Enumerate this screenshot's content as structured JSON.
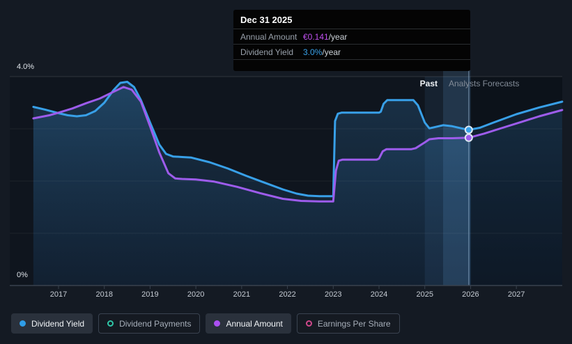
{
  "tooltip": {
    "date": "Dec 31 2025",
    "rows": [
      {
        "label": "Annual Amount",
        "value": "€0.141",
        "suffix": "/year",
        "color": "#c050f0"
      },
      {
        "label": "Dividend Yield",
        "value": "3.0%",
        "suffix": "/year",
        "color": "#38a0e8"
      }
    ]
  },
  "y_axis": {
    "top_label": "4.0%",
    "bottom_label": "0%"
  },
  "x_axis": {
    "years": [
      "2017",
      "2018",
      "2019",
      "2020",
      "2021",
      "2022",
      "2023",
      "2024",
      "2025",
      "2026",
      "2027"
    ]
  },
  "zones": {
    "past_label": "Past",
    "forecast_label": "Analysts Forecasts"
  },
  "legend": [
    {
      "label": "Dividend Yield",
      "marker": "filled-circle",
      "color": "#2f9de8",
      "active": true
    },
    {
      "label": "Dividend Payments",
      "marker": "ring-circle",
      "color": "#2fc7a8",
      "active": false
    },
    {
      "label": "Annual Amount",
      "marker": "filled-circle",
      "color": "#ab4ff2",
      "active": true
    },
    {
      "label": "Earnings Per Share",
      "marker": "ring-circle",
      "color": "#d0488c",
      "active": false
    }
  ],
  "colors": {
    "background": "#141a23",
    "plot_background": "#0f151e",
    "yield_line": "#38a0e8",
    "amount_line": "#9d5ceb",
    "axis_line": "#39424e"
  },
  "chart_data": {
    "type": "line",
    "x_range": [
      2016.45,
      2028
    ],
    "y_axis_percent": {
      "min": 0,
      "max": 4,
      "gridlines": [
        1,
        2,
        3,
        4
      ],
      "top_tick_label": "4.0%",
      "bottom_tick_label": "0%"
    },
    "x_ticks": [
      2017,
      2018,
      2019,
      2020,
      2021,
      2022,
      2023,
      2024,
      2025,
      2026,
      2027
    ],
    "highlight_band_years": [
      2025,
      2026
    ],
    "past_forecast_divider_year": 2025.4,
    "legend_position": "bottom",
    "grid": true,
    "hover": {
      "year": 2025.96,
      "date": "Dec 31 2025",
      "annual_amount_eur_per_year": 0.141,
      "dividend_yield_percent_per_year": 3.0
    },
    "series": [
      {
        "name": "Dividend Yield",
        "unit": "percent",
        "color": "#38a0e8",
        "marker_at_hover": {
          "year": 2025.96,
          "value": 2.98
        },
        "points": [
          [
            2016.45,
            3.42
          ],
          [
            2016.7,
            3.37
          ],
          [
            2017.0,
            3.3
          ],
          [
            2017.2,
            3.26
          ],
          [
            2017.4,
            3.24
          ],
          [
            2017.6,
            3.26
          ],
          [
            2017.8,
            3.34
          ],
          [
            2018.0,
            3.5
          ],
          [
            2018.2,
            3.74
          ],
          [
            2018.35,
            3.88
          ],
          [
            2018.5,
            3.9
          ],
          [
            2018.65,
            3.8
          ],
          [
            2018.8,
            3.55
          ],
          [
            2019.0,
            3.12
          ],
          [
            2019.2,
            2.7
          ],
          [
            2019.35,
            2.52
          ],
          [
            2019.5,
            2.47
          ],
          [
            2019.7,
            2.46
          ],
          [
            2019.9,
            2.45
          ],
          [
            2020.3,
            2.36
          ],
          [
            2020.7,
            2.24
          ],
          [
            2021.1,
            2.1
          ],
          [
            2021.5,
            1.97
          ],
          [
            2021.9,
            1.84
          ],
          [
            2022.2,
            1.76
          ],
          [
            2022.45,
            1.72
          ],
          [
            2022.7,
            1.71
          ],
          [
            2023.0,
            1.71
          ],
          [
            2023.04,
            3.15
          ],
          [
            2023.1,
            3.29
          ],
          [
            2023.18,
            3.31
          ],
          [
            2024.0,
            3.31
          ],
          [
            2024.04,
            3.33
          ],
          [
            2024.1,
            3.48
          ],
          [
            2024.18,
            3.55
          ],
          [
            2024.3,
            3.55
          ],
          [
            2024.75,
            3.55
          ],
          [
            2024.85,
            3.45
          ],
          [
            2025.0,
            3.12
          ],
          [
            2025.1,
            3.01
          ],
          [
            2025.2,
            3.03
          ],
          [
            2025.4,
            3.07
          ],
          [
            2025.6,
            3.05
          ],
          [
            2025.8,
            3.01
          ],
          [
            2025.96,
            2.98
          ],
          [
            2026.2,
            3.02
          ],
          [
            2026.5,
            3.12
          ],
          [
            2027.0,
            3.28
          ],
          [
            2027.5,
            3.41
          ],
          [
            2028.0,
            3.52
          ]
        ]
      },
      {
        "name": "Annual Amount",
        "unit": "eur_per_year (plotted on shared visual axis; percent-equivalent positions)",
        "color": "#9d5ceb",
        "known_value": {
          "year": 2025.96,
          "eur_per_year": 0.141
        },
        "marker_at_hover": {
          "year": 2025.96,
          "value": 2.83
        },
        "points": [
          [
            2016.45,
            3.2
          ],
          [
            2016.8,
            3.26
          ],
          [
            2017.0,
            3.31
          ],
          [
            2017.3,
            3.39
          ],
          [
            2017.6,
            3.49
          ],
          [
            2017.9,
            3.58
          ],
          [
            2018.2,
            3.71
          ],
          [
            2018.42,
            3.8
          ],
          [
            2018.6,
            3.75
          ],
          [
            2018.8,
            3.52
          ],
          [
            2019.0,
            3.05
          ],
          [
            2019.2,
            2.55
          ],
          [
            2019.4,
            2.15
          ],
          [
            2019.55,
            2.05
          ],
          [
            2019.7,
            2.04
          ],
          [
            2020.0,
            2.03
          ],
          [
            2020.4,
            1.99
          ],
          [
            2020.9,
            1.89
          ],
          [
            2021.4,
            1.77
          ],
          [
            2021.9,
            1.66
          ],
          [
            2022.3,
            1.62
          ],
          [
            2022.7,
            1.61
          ],
          [
            2023.0,
            1.61
          ],
          [
            2023.06,
            2.2
          ],
          [
            2023.12,
            2.39
          ],
          [
            2023.2,
            2.41
          ],
          [
            2023.95,
            2.41
          ],
          [
            2024.0,
            2.43
          ],
          [
            2024.08,
            2.57
          ],
          [
            2024.16,
            2.61
          ],
          [
            2024.7,
            2.61
          ],
          [
            2024.8,
            2.63
          ],
          [
            2025.0,
            2.74
          ],
          [
            2025.1,
            2.8
          ],
          [
            2025.3,
            2.82
          ],
          [
            2025.6,
            2.82
          ],
          [
            2025.96,
            2.83
          ],
          [
            2026.3,
            2.91
          ],
          [
            2026.7,
            3.02
          ],
          [
            2027.1,
            3.13
          ],
          [
            2027.5,
            3.24
          ],
          [
            2028.0,
            3.36
          ]
        ]
      }
    ]
  }
}
